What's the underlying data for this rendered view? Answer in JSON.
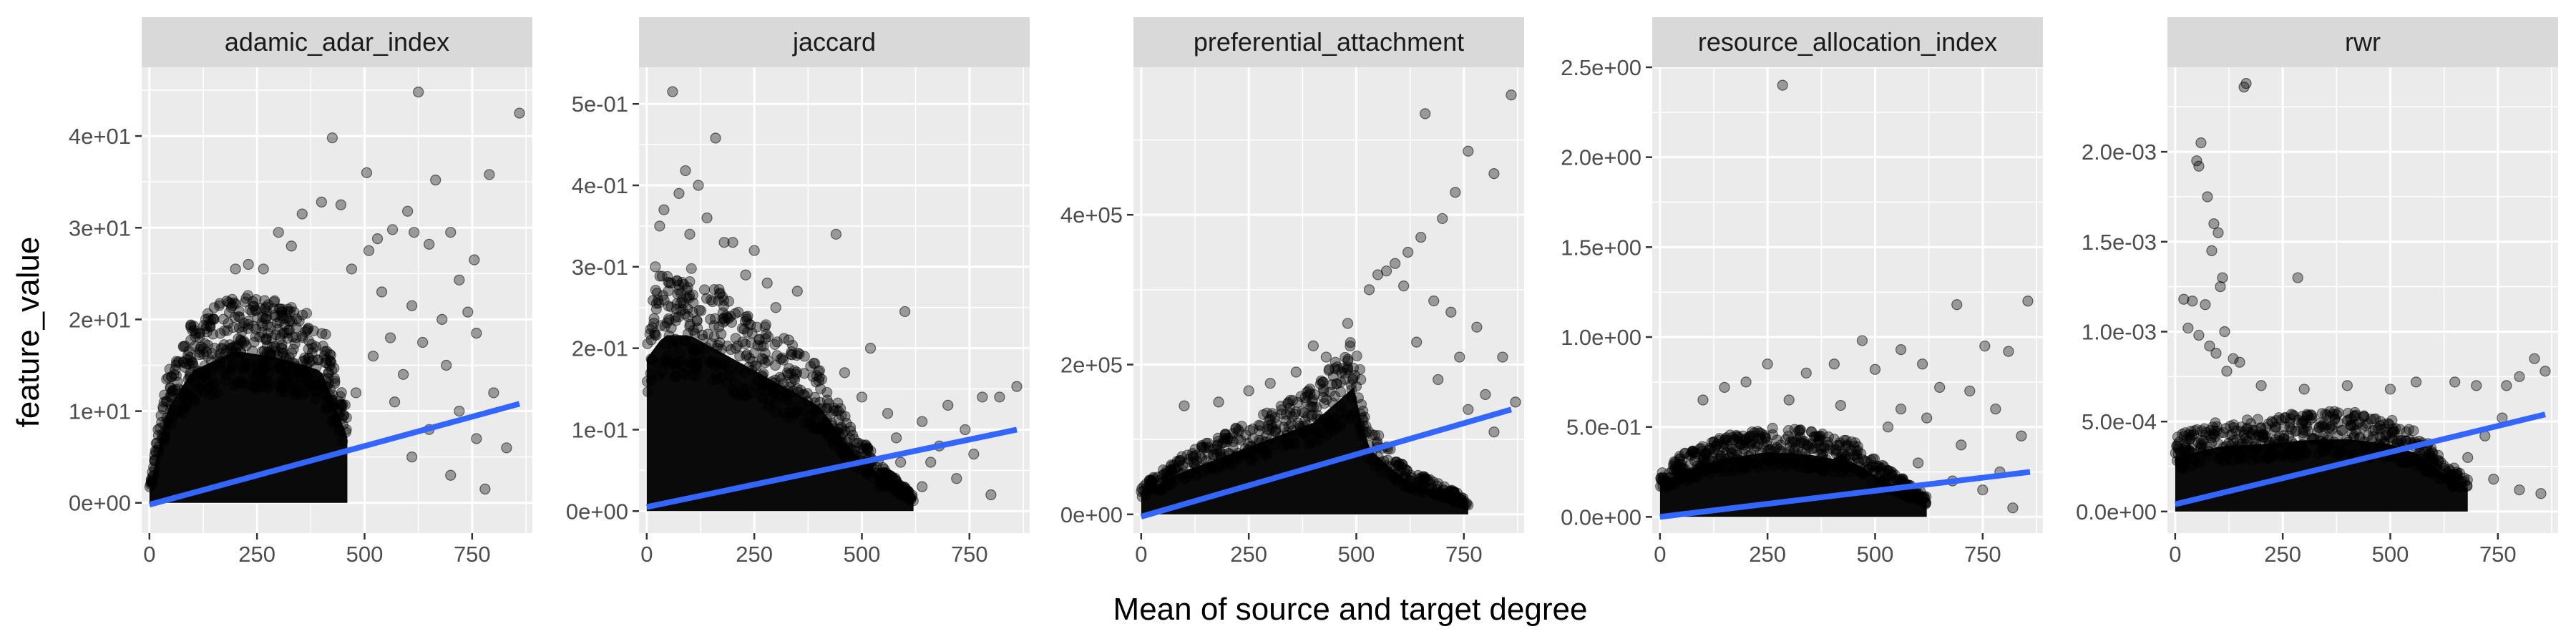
{
  "chart_data": {
    "type": "scatter",
    "xlabel": "Mean of source and target degree",
    "ylabel": "feature_value",
    "grid": true,
    "legend": "none",
    "colors": {
      "panel_bg": "#ebebeb",
      "strip_bg": "#d9d9d9",
      "grid": "#ffffff",
      "points": "#000000",
      "trend": "#3366ff",
      "tick": "#333333"
    },
    "panels": [
      {
        "title": "adamic_adar_index",
        "xlim": [
          -18,
          890
        ],
        "ylim": [
          -3.3,
          47.5
        ],
        "xticks": [
          0,
          250,
          500,
          750
        ],
        "xtick_labels": [
          "0",
          "250",
          "500",
          "750"
        ],
        "yticks": [
          0,
          10,
          20,
          30,
          40
        ],
        "ytick_labels": [
          "0e+00",
          "1e+01",
          "2e+01",
          "3e+01",
          "4e+01"
        ],
        "trend": [
          [
            0,
            -0.2
          ],
          [
            860,
            10.8
          ]
        ],
        "mass": {
          "ymax": [
            [
              0,
              2
            ],
            [
              40,
              14
            ],
            [
              100,
              20
            ],
            [
              200,
              23
            ],
            [
              300,
              22
            ],
            [
              400,
              20
            ],
            [
              460,
              10
            ]
          ],
          "ymin": 0,
          "xmin": 0
        },
        "points": [
          [
            625,
            44.8
          ],
          [
            425,
            39.8
          ],
          [
            860,
            42.5
          ],
          [
            790,
            35.8
          ],
          [
            665,
            35.2
          ],
          [
            505,
            36.0
          ],
          [
            530,
            28.8
          ],
          [
            600,
            31.8
          ],
          [
            615,
            29.5
          ],
          [
            700,
            29.5
          ],
          [
            565,
            29.8
          ],
          [
            650,
            28.2
          ],
          [
            755,
            26.5
          ],
          [
            720,
            24.3
          ],
          [
            510,
            27.5
          ],
          [
            445,
            32.5
          ],
          [
            400,
            32.8
          ],
          [
            355,
            31.5
          ],
          [
            300,
            29.5
          ],
          [
            265,
            25.5
          ],
          [
            150,
            20.0
          ],
          [
            200,
            25.5
          ],
          [
            470,
            25.5
          ],
          [
            540,
            23.0
          ],
          [
            610,
            21.5
          ],
          [
            680,
            20.0
          ],
          [
            760,
            18.5
          ],
          [
            800,
            12.0
          ],
          [
            830,
            6.0
          ],
          [
            780,
            1.5
          ],
          [
            700,
            3.0
          ],
          [
            650,
            8.0
          ],
          [
            590,
            14.0
          ],
          [
            560,
            18.0
          ],
          [
            520,
            16.0
          ],
          [
            480,
            12.0
          ],
          [
            760,
            7.0
          ],
          [
            610,
            5.0
          ],
          [
            720,
            10.0
          ],
          [
            690,
            15.0
          ],
          [
            230,
            26.0
          ],
          [
            330,
            28.0
          ],
          [
            180,
            22.0
          ],
          [
            120,
            17.0
          ],
          [
            60,
            14.5
          ],
          [
            90,
            12.0
          ],
          [
            740,
            20.8
          ],
          [
            635,
            17.5
          ],
          [
            570,
            11.0
          ]
        ]
      },
      {
        "title": "jaccard",
        "xlim": [
          -18,
          890
        ],
        "ylim": [
          -0.027,
          0.545
        ],
        "xticks": [
          0,
          250,
          500,
          750
        ],
        "xtick_labels": [
          "0",
          "250",
          "500",
          "750"
        ],
        "yticks": [
          0,
          0.1,
          0.2,
          0.3,
          0.4,
          0.5
        ],
        "ytick_labels": [
          "0e+00",
          "1e-01",
          "2e-01",
          "3e-01",
          "4e-01",
          "5e-01"
        ],
        "trend": [
          [
            0,
            0.005
          ],
          [
            860,
            0.1
          ]
        ],
        "mass": {
          "ymax": [
            [
              0,
              0.26
            ],
            [
              40,
              0.3
            ],
            [
              100,
              0.3
            ],
            [
              200,
              0.26
            ],
            [
              300,
              0.22
            ],
            [
              400,
              0.18
            ],
            [
              480,
              0.1
            ],
            [
              560,
              0.05
            ],
            [
              620,
              0.02
            ]
          ],
          "ymin": 0,
          "xmin": 0
        },
        "points": [
          [
            60,
            0.515
          ],
          [
            160,
            0.458
          ],
          [
            90,
            0.418
          ],
          [
            120,
            0.4
          ],
          [
            75,
            0.39
          ],
          [
            40,
            0.37
          ],
          [
            30,
            0.35
          ],
          [
            140,
            0.36
          ],
          [
            200,
            0.33
          ],
          [
            250,
            0.32
          ],
          [
            180,
            0.33
          ],
          [
            440,
            0.34
          ],
          [
            350,
            0.27
          ],
          [
            280,
            0.28
          ],
          [
            300,
            0.25
          ],
          [
            600,
            0.245
          ],
          [
            520,
            0.2
          ],
          [
            460,
            0.17
          ],
          [
            500,
            0.14
          ],
          [
            560,
            0.12
          ],
          [
            640,
            0.11
          ],
          [
            700,
            0.13
          ],
          [
            780,
            0.14
          ],
          [
            860,
            0.153
          ],
          [
            820,
            0.14
          ],
          [
            740,
            0.1
          ],
          [
            680,
            0.08
          ],
          [
            640,
            0.03
          ],
          [
            720,
            0.04
          ],
          [
            590,
            0.06
          ],
          [
            800,
            0.02
          ],
          [
            20,
            0.3
          ],
          [
            100,
            0.34
          ],
          [
            230,
            0.29
          ],
          [
            330,
            0.21
          ],
          [
            400,
            0.16
          ],
          [
            580,
            0.09
          ],
          [
            660,
            0.06
          ],
          [
            760,
            0.07
          ],
          [
            540,
            0.03
          ]
        ]
      },
      {
        "title": "preferential_attachment",
        "xlim": [
          -18,
          890
        ],
        "ylim": [
          -25000,
          597000
        ],
        "xticks": [
          0,
          250,
          500,
          750
        ],
        "xtick_labels": [
          "0",
          "250",
          "500",
          "750"
        ],
        "yticks": [
          0,
          200000,
          400000
        ],
        "ytick_labels": [
          "0e+00",
          "2e+05",
          "4e+05"
        ],
        "trend": [
          [
            0,
            -3000
          ],
          [
            860,
            140000
          ]
        ],
        "mass": {
          "ymax": [
            [
              0,
              40000
            ],
            [
              100,
              80000
            ],
            [
              200,
              110000
            ],
            [
              300,
              140000
            ],
            [
              400,
              170000
            ],
            [
              500,
              240000
            ],
            [
              520,
              130000
            ],
            [
              560,
              100000
            ],
            [
              620,
              60000
            ],
            [
              700,
              40000
            ],
            [
              760,
              20000
            ]
          ],
          "ymin": 0,
          "xmin": 0
        },
        "points": [
          [
            860,
            560000
          ],
          [
            760,
            485000
          ],
          [
            820,
            455000
          ],
          [
            660,
            535000
          ],
          [
            730,
            430000
          ],
          [
            700,
            395000
          ],
          [
            650,
            370000
          ],
          [
            620,
            350000
          ],
          [
            590,
            335000
          ],
          [
            570,
            325000
          ],
          [
            550,
            320000
          ],
          [
            530,
            300000
          ],
          [
            610,
            305000
          ],
          [
            680,
            285000
          ],
          [
            720,
            270000
          ],
          [
            780,
            250000
          ],
          [
            840,
            210000
          ],
          [
            740,
            210000
          ],
          [
            800,
            160000
          ],
          [
            690,
            180000
          ],
          [
            640,
            230000
          ],
          [
            480,
            255000
          ],
          [
            430,
            210000
          ],
          [
            400,
            225000
          ],
          [
            360,
            190000
          ],
          [
            300,
            175000
          ],
          [
            250,
            165000
          ],
          [
            180,
            150000
          ],
          [
            100,
            145000
          ],
          [
            470,
            195000
          ],
          [
            760,
            140000
          ],
          [
            820,
            110000
          ],
          [
            870,
            150000
          ]
        ]
      },
      {
        "title": "resource_allocation_index",
        "xlim": [
          -18,
          890
        ],
        "ylim": [
          -0.09,
          2.5
        ],
        "xticks": [
          0,
          250,
          500,
          750
        ],
        "xtick_labels": [
          "0",
          "250",
          "500",
          "750"
        ],
        "yticks": [
          0,
          0.5,
          1.0,
          1.5,
          2.0,
          2.5
        ],
        "ytick_labels": [
          "0.0e+00",
          "5.0e-01",
          "1.0e+00",
          "1.5e+00",
          "2.0e+00",
          "2.5e+00"
        ],
        "trend": [
          [
            0,
            0
          ],
          [
            860,
            0.25
          ]
        ],
        "mass": {
          "ymax": [
            [
              0,
              0.25
            ],
            [
              50,
              0.35
            ],
            [
              150,
              0.45
            ],
            [
              250,
              0.5
            ],
            [
              350,
              0.48
            ],
            [
              450,
              0.42
            ],
            [
              500,
              0.32
            ],
            [
              560,
              0.22
            ],
            [
              620,
              0.12
            ]
          ],
          "ymin": 0,
          "xmin": 0
        },
        "points": [
          [
            285,
            2.4
          ],
          [
            855,
            1.2
          ],
          [
            690,
            1.18
          ],
          [
            810,
            0.92
          ],
          [
            755,
            0.95
          ],
          [
            470,
            0.98
          ],
          [
            560,
            0.93
          ],
          [
            610,
            0.85
          ],
          [
            500,
            0.82
          ],
          [
            405,
            0.85
          ],
          [
            340,
            0.8
          ],
          [
            250,
            0.85
          ],
          [
            200,
            0.75
          ],
          [
            150,
            0.72
          ],
          [
            100,
            0.65
          ],
          [
            650,
            0.72
          ],
          [
            720,
            0.7
          ],
          [
            780,
            0.6
          ],
          [
            840,
            0.45
          ],
          [
            700,
            0.4
          ],
          [
            620,
            0.55
          ],
          [
            560,
            0.6
          ],
          [
            790,
            0.25
          ],
          [
            750,
            0.15
          ],
          [
            820,
            0.05
          ],
          [
            680,
            0.2
          ],
          [
            600,
            0.3
          ],
          [
            530,
            0.5
          ],
          [
            420,
            0.62
          ],
          [
            300,
            0.65
          ]
        ]
      },
      {
        "title": "rwr",
        "xlim": [
          -18,
          890
        ],
        "ylim": [
          -0.00012,
          0.00247
        ],
        "xticks": [
          0,
          250,
          500,
          750
        ],
        "xtick_labels": [
          "0",
          "250",
          "500",
          "750"
        ],
        "yticks": [
          0,
          0.0005,
          0.001,
          0.0015,
          0.002
        ],
        "ytick_labels": [
          "0.0e+00",
          "5.0e-04",
          "1.0e-03",
          "1.5e-03",
          "2.0e-03"
        ],
        "trend": [
          [
            0,
            4e-05
          ],
          [
            860,
            0.00054
          ]
        ],
        "mass": {
          "ymax": [
            [
              0,
              0.00042
            ],
            [
              100,
              0.0005
            ],
            [
              200,
              0.00052
            ],
            [
              300,
              0.00055
            ],
            [
              400,
              0.00056
            ],
            [
              500,
              0.00052
            ],
            [
              560,
              0.00045
            ],
            [
              620,
              0.0003
            ],
            [
              680,
              0.00018
            ]
          ],
          "ymin": 0,
          "xmin": 0
        },
        "points": [
          [
            165,
            0.00238
          ],
          [
            160,
            0.00236
          ],
          [
            60,
            0.00205
          ],
          [
            50,
            0.00195
          ],
          [
            55,
            0.00192
          ],
          [
            75,
            0.00175
          ],
          [
            90,
            0.0016
          ],
          [
            100,
            0.00155
          ],
          [
            85,
            0.00145
          ],
          [
            110,
            0.0013
          ],
          [
            105,
            0.00125
          ],
          [
            285,
            0.0013
          ],
          [
            20,
            0.00118
          ],
          [
            40,
            0.00117
          ],
          [
            70,
            0.00115
          ],
          [
            115,
            0.001
          ],
          [
            30,
            0.00102
          ],
          [
            55,
            0.00098
          ],
          [
            80,
            0.00092
          ],
          [
            95,
            0.00088
          ],
          [
            135,
            0.00085
          ],
          [
            150,
            0.00083
          ],
          [
            120,
            0.00078
          ],
          [
            200,
            0.0007
          ],
          [
            300,
            0.00068
          ],
          [
            400,
            0.0007
          ],
          [
            500,
            0.00068
          ],
          [
            560,
            0.00072
          ],
          [
            650,
            0.00072
          ],
          [
            700,
            0.0007
          ],
          [
            770,
            0.0007
          ],
          [
            835,
            0.00085
          ],
          [
            800,
            0.00075
          ],
          [
            860,
            0.00078
          ],
          [
            760,
            0.00052
          ],
          [
            720,
            0.00042
          ],
          [
            680,
            0.0003
          ],
          [
            640,
            0.0002
          ],
          [
            800,
            0.00012
          ],
          [
            850,
            0.0001
          ],
          [
            740,
            0.00018
          ]
        ]
      }
    ]
  }
}
